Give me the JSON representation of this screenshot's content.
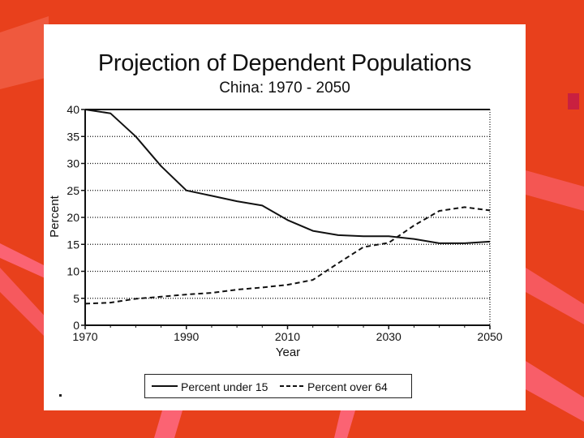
{
  "colors": {
    "background": "#e8401c",
    "card": "#ffffff",
    "ink": "#111111"
  },
  "chart_data": {
    "type": "line",
    "title": "Projection of Dependent Populations",
    "subtitle": "China: 1970 - 2050",
    "xlabel": "Year",
    "ylabel": "Percent",
    "xlim": [
      1970,
      2050
    ],
    "ylim": [
      0,
      40
    ],
    "x_ticks": [
      1970,
      1990,
      2010,
      2030,
      2050
    ],
    "y_ticks": [
      0,
      5,
      10,
      15,
      20,
      25,
      30,
      35,
      40
    ],
    "grid": "horizontal dotted",
    "legend_position": "bottom",
    "series": [
      {
        "name": "Percent under 15",
        "style": "solid",
        "x": [
          1970,
          1975,
          1980,
          1985,
          1990,
          1995,
          2000,
          2005,
          2010,
          2015,
          2020,
          2025,
          2030,
          2035,
          2040,
          2045,
          2050
        ],
        "values": [
          40,
          39.3,
          35,
          29.5,
          25,
          24,
          23,
          22.2,
          19.5,
          17.5,
          16.7,
          16.5,
          16.5,
          16,
          15.2,
          15.2,
          15.5
        ]
      },
      {
        "name": "Percent over 64",
        "style": "dashed",
        "x": [
          1970,
          1975,
          1980,
          1985,
          1990,
          1995,
          2000,
          2005,
          2010,
          2015,
          2020,
          2025,
          2030,
          2035,
          2040,
          2045,
          2050
        ],
        "values": [
          4,
          4.2,
          4.9,
          5.3,
          5.7,
          6,
          6.6,
          7,
          7.5,
          8.4,
          11.5,
          14.5,
          15.3,
          18.5,
          21.2,
          21.9,
          21.3
        ]
      }
    ]
  }
}
